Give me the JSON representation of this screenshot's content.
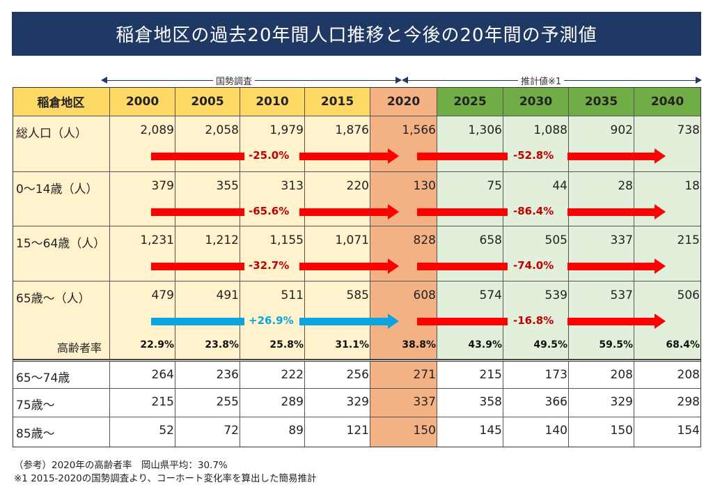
{
  "title": "稲倉地区の過去20年間人口推移と今後の20年間の予測値",
  "spans": {
    "census": "国勢調査",
    "estimate": "推計値※1"
  },
  "table": {
    "corner": "稲倉地区",
    "years": [
      "2000",
      "2005",
      "2010",
      "2015",
      "2020",
      "2025",
      "2030",
      "2035",
      "2040"
    ],
    "rows": [
      {
        "label": "総人口（人）",
        "values": [
          "2,089",
          "2,058",
          "1,979",
          "1,876",
          "1,566",
          "1,306",
          "1,088",
          "902",
          "738"
        ],
        "change_past": "-25.0%",
        "change_future": "-52.8%",
        "past_color": "red"
      },
      {
        "label": "0～14歳（人）",
        "values": [
          "379",
          "355",
          "313",
          "220",
          "130",
          "75",
          "44",
          "28",
          "18"
        ],
        "change_past": "-65.6%",
        "change_future": "-86.4%",
        "past_color": "red"
      },
      {
        "label": "15～64歳（人）",
        "values": [
          "1,231",
          "1,212",
          "1,155",
          "1,071",
          "828",
          "658",
          "505",
          "337",
          "215"
        ],
        "change_past": "-32.7%",
        "change_future": "-74.0%",
        "past_color": "red"
      },
      {
        "label": "65歳～（人）",
        "values": [
          "479",
          "491",
          "511",
          "585",
          "608",
          "574",
          "539",
          "537",
          "506"
        ],
        "change_past": "+26.9%",
        "change_future": "-16.8%",
        "past_color": "blue"
      }
    ],
    "aging": {
      "label": "高齢者率",
      "values": [
        "22.9%",
        "23.8%",
        "25.8%",
        "31.1%",
        "38.8%",
        "43.9%",
        "49.5%",
        "59.5%",
        "68.4%"
      ]
    },
    "sub_rows": [
      {
        "label": "65～74歳",
        "values": [
          "264",
          "236",
          "222",
          "256",
          "271",
          "215",
          "173",
          "208",
          "208"
        ]
      },
      {
        "label": "75歳～",
        "values": [
          "215",
          "255",
          "289",
          "329",
          "337",
          "358",
          "366",
          "329",
          "298"
        ]
      },
      {
        "label": "85歳～",
        "values": [
          "52",
          "72",
          "89",
          "121",
          "150",
          "145",
          "140",
          "150",
          "154"
        ]
      }
    ]
  },
  "footnotes": [
    "（参考）2020年の高齢者率　岡山県平均：30.7%",
    "※1  2015-2020の国勢調査より、コーホート変化率を算出した簡易推計"
  ],
  "colors": {
    "title_bg": "#1f3864",
    "header_past": "#ffd966",
    "header_2020": "#f4b183",
    "header_future": "#70ad47",
    "body_past": "#fff2cc",
    "body_future": "#e2efda",
    "arrow_red": "#ff0000",
    "arrow_blue": "#0aa5e0"
  }
}
